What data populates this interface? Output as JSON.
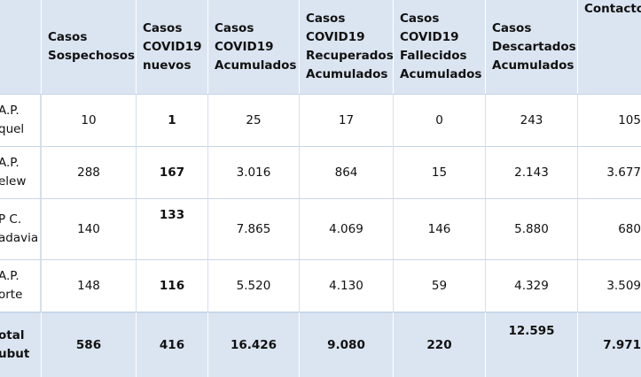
{
  "headers": {
    "sospechosos": "Casos Sospechosos",
    "nuevos": "Casos COVID19 nuevos",
    "acumulados": "Casos COVID19 Acumulados",
    "recuperados": "Casos COVID19 Recuperados Acumulados",
    "fallecidos": "Casos COVID19 Fallecidos Acumulados",
    "descartados": "Casos Descartados Acumulados",
    "contactos": "Contactos Estrechos actualmente en seguimiento"
  },
  "rows": [
    {
      "region_line1": "A.P.",
      "region_line2": "quel",
      "sospechosos": "10",
      "nuevos": "1",
      "acumulados": "25",
      "recuperados": "17",
      "fallecidos": "0",
      "descartados": "243",
      "contactos": "105"
    },
    {
      "region_line1": "A.P.",
      "region_line2": "elew",
      "sospechosos": "288",
      "nuevos": "167",
      "acumulados": "3.016",
      "recuperados": "864",
      "fallecidos": "15",
      "descartados": "2.143",
      "contactos": "3.677"
    },
    {
      "region_line1": "P C.",
      "region_line2": "adavia",
      "sospechosos": "140",
      "nuevos": "133",
      "acumulados": "7.865",
      "recuperados": "4.069",
      "fallecidos": "146",
      "descartados": "5.880",
      "contactos": "680"
    },
    {
      "region_line1": "A.P.",
      "region_line2": "orte",
      "sospechosos": "148",
      "nuevos": "116",
      "acumulados": "5.520",
      "recuperados": "4.130",
      "fallecidos": "59",
      "descartados": "4.329",
      "contactos": "3.509"
    }
  ],
  "total": {
    "region_line1": "otal",
    "region_line2": "ubut",
    "sospechosos": "586",
    "nuevos": "416",
    "acumulados": "16.426",
    "recuperados": "9.080",
    "fallecidos": "220",
    "descartados": "12.595",
    "contactos": "7.971"
  }
}
